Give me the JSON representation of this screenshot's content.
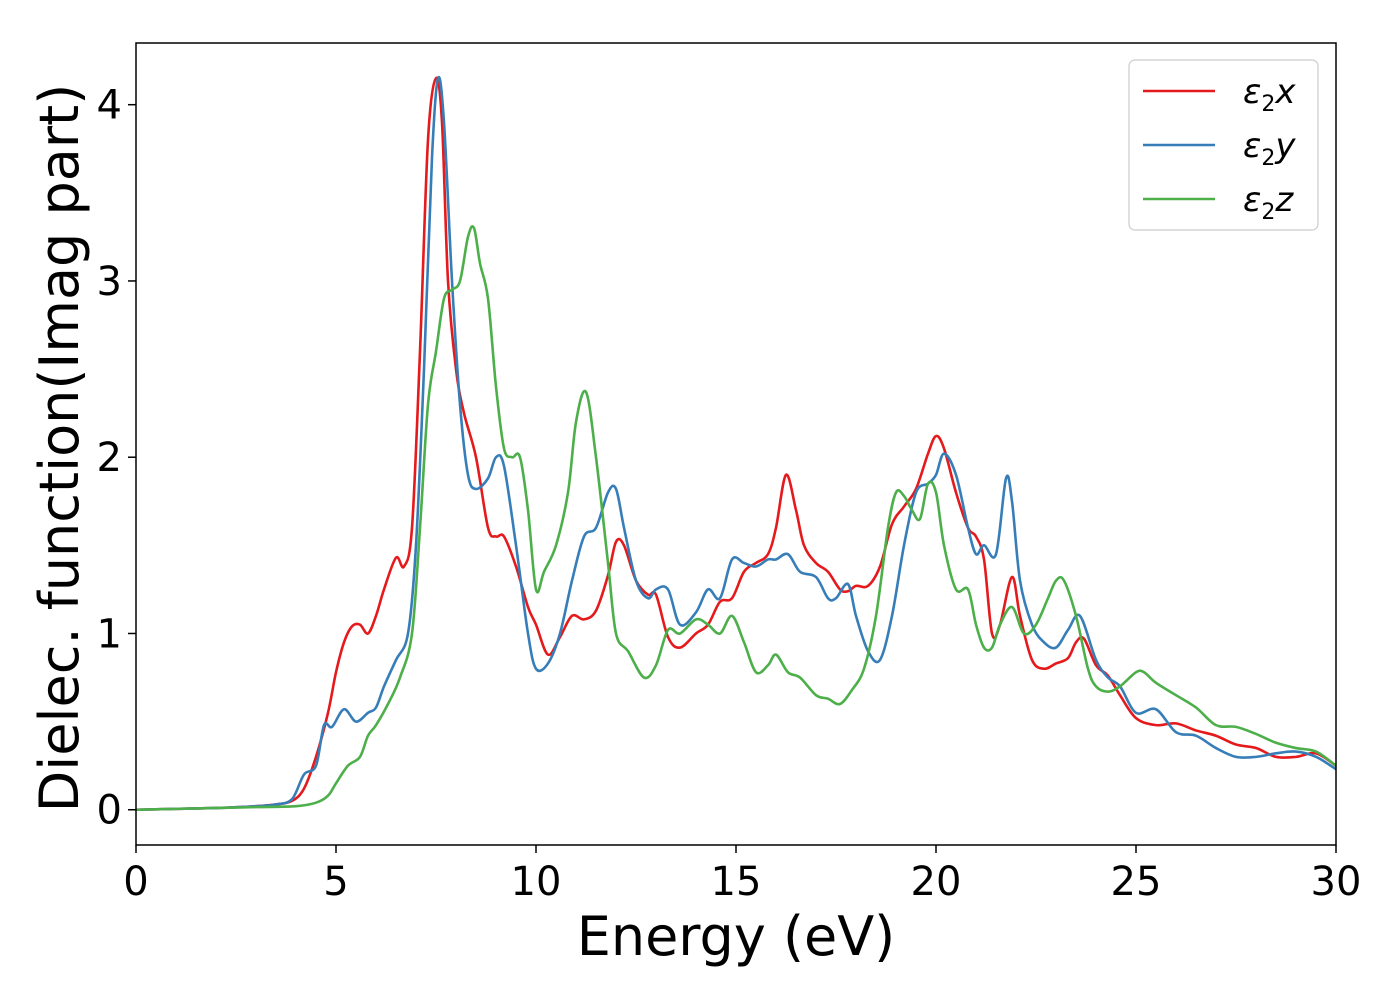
{
  "chart_data": {
    "type": "line",
    "title": "",
    "xlabel": "Energy (eV)",
    "ylabel": "Dielec. function(Imag part)",
    "xlim": [
      0,
      30
    ],
    "ylim": [
      -0.2,
      4.35
    ],
    "xticks": [
      0,
      5,
      10,
      15,
      20,
      25,
      30
    ],
    "yticks": [
      0,
      1,
      2,
      3,
      4
    ],
    "grid": false,
    "legend_position": "top-right",
    "series": [
      {
        "name": "ε₂x",
        "legend": {
          "base": "ε",
          "sub": "2",
          "suffix": "x"
        },
        "color": "#e41a1c",
        "x": [
          0,
          1,
          2,
          3,
          3.5,
          3.9,
          4.2,
          4.5,
          4.8,
          5.0,
          5.2,
          5.4,
          5.6,
          5.8,
          6.0,
          6.2,
          6.5,
          6.7,
          6.9,
          7.1,
          7.3,
          7.5,
          7.65,
          7.8,
          8.0,
          8.2,
          8.5,
          8.8,
          9.0,
          9.2,
          9.5,
          9.8,
          10.0,
          10.3,
          10.6,
          10.9,
          11.2,
          11.5,
          11.8,
          12.0,
          12.2,
          12.5,
          12.8,
          13.0,
          13.3,
          13.6,
          14.0,
          14.3,
          14.6,
          14.9,
          15.2,
          15.5,
          15.8,
          16.0,
          16.25,
          16.5,
          16.7,
          17.0,
          17.3,
          17.6,
          17.8,
          18.0,
          18.3,
          18.6,
          18.9,
          19.2,
          19.5,
          19.8,
          20.0,
          20.2,
          20.5,
          20.8,
          21.0,
          21.2,
          21.4,
          21.6,
          21.9,
          22.1,
          22.4,
          22.7,
          23.0,
          23.3,
          23.5,
          23.7,
          24.0,
          24.3,
          24.6,
          25.0,
          25.5,
          26.0,
          26.5,
          27.0,
          27.5,
          28.0,
          28.5,
          29.0,
          29.5,
          30.0
        ],
        "y": [
          0.0,
          0.005,
          0.01,
          0.02,
          0.03,
          0.05,
          0.12,
          0.3,
          0.55,
          0.78,
          0.95,
          1.04,
          1.05,
          1.0,
          1.1,
          1.25,
          1.43,
          1.38,
          1.6,
          2.6,
          3.8,
          4.15,
          3.9,
          3.0,
          2.5,
          2.25,
          2.0,
          1.6,
          1.55,
          1.55,
          1.38,
          1.15,
          1.05,
          0.88,
          0.98,
          1.1,
          1.08,
          1.13,
          1.33,
          1.52,
          1.5,
          1.3,
          1.22,
          1.22,
          0.98,
          0.92,
          1.0,
          1.05,
          1.18,
          1.2,
          1.35,
          1.4,
          1.45,
          1.6,
          1.9,
          1.7,
          1.5,
          1.4,
          1.35,
          1.25,
          1.24,
          1.27,
          1.27,
          1.38,
          1.62,
          1.72,
          1.82,
          2.02,
          2.12,
          2.05,
          1.8,
          1.6,
          1.55,
          1.42,
          1.0,
          1.05,
          1.32,
          1.1,
          0.85,
          0.8,
          0.83,
          0.86,
          0.95,
          0.97,
          0.82,
          0.76,
          0.65,
          0.52,
          0.48,
          0.49,
          0.45,
          0.42,
          0.37,
          0.35,
          0.3,
          0.3,
          0.32,
          0.25
        ]
      },
      {
        "name": "ε₂y",
        "legend": {
          "base": "ε",
          "sub": "2",
          "suffix": "y"
        },
        "color": "#377eb8",
        "x": [
          0,
          1,
          2,
          3,
          3.5,
          3.9,
          4.2,
          4.5,
          4.7,
          4.9,
          5.2,
          5.5,
          5.8,
          6.0,
          6.2,
          6.5,
          6.8,
          7.0,
          7.2,
          7.4,
          7.55,
          7.7,
          7.9,
          8.1,
          8.3,
          8.5,
          8.8,
          9.0,
          9.2,
          9.5,
          9.8,
          10.0,
          10.3,
          10.6,
          10.9,
          11.2,
          11.5,
          11.8,
          12.0,
          12.2,
          12.5,
          12.8,
          13.0,
          13.3,
          13.6,
          14.0,
          14.3,
          14.6,
          14.9,
          15.2,
          15.5,
          15.8,
          16.0,
          16.3,
          16.6,
          17.0,
          17.3,
          17.5,
          17.8,
          18.0,
          18.3,
          18.6,
          18.9,
          19.2,
          19.5,
          19.8,
          20.0,
          20.2,
          20.5,
          20.8,
          21.0,
          21.2,
          21.5,
          21.75,
          21.9,
          22.1,
          22.4,
          22.7,
          23.0,
          23.3,
          23.6,
          24.0,
          24.3,
          24.6,
          25.0,
          25.5,
          26.0,
          26.5,
          27.0,
          27.5,
          28.0,
          28.5,
          29.0,
          29.5,
          30.0
        ],
        "y": [
          0.0,
          0.005,
          0.01,
          0.02,
          0.03,
          0.06,
          0.2,
          0.25,
          0.48,
          0.47,
          0.57,
          0.5,
          0.55,
          0.58,
          0.7,
          0.85,
          1.0,
          1.5,
          2.5,
          3.7,
          4.15,
          3.9,
          3.0,
          2.3,
          1.9,
          1.82,
          1.88,
          2.0,
          1.95,
          1.5,
          1.0,
          0.8,
          0.83,
          1.0,
          1.3,
          1.55,
          1.6,
          1.8,
          1.82,
          1.6,
          1.3,
          1.2,
          1.25,
          1.25,
          1.05,
          1.12,
          1.25,
          1.2,
          1.42,
          1.4,
          1.38,
          1.42,
          1.42,
          1.45,
          1.35,
          1.32,
          1.2,
          1.2,
          1.28,
          1.1,
          0.9,
          0.85,
          1.1,
          1.5,
          1.8,
          1.85,
          1.9,
          2.02,
          1.9,
          1.6,
          1.45,
          1.5,
          1.45,
          1.88,
          1.75,
          1.3,
          1.05,
          0.95,
          0.92,
          1.02,
          1.1,
          0.85,
          0.75,
          0.7,
          0.55,
          0.57,
          0.44,
          0.42,
          0.35,
          0.3,
          0.3,
          0.32,
          0.33,
          0.3,
          0.23
        ]
      },
      {
        "name": "ε₂z",
        "legend": {
          "base": "ε",
          "sub": "2",
          "suffix": "z"
        },
        "color": "#4daf4a",
        "x": [
          0,
          1,
          2,
          3,
          4,
          4.5,
          4.8,
          5.0,
          5.3,
          5.6,
          5.8,
          6.0,
          6.3,
          6.6,
          6.9,
          7.1,
          7.3,
          7.5,
          7.7,
          7.9,
          8.1,
          8.3,
          8.45,
          8.6,
          8.8,
          9.0,
          9.2,
          9.4,
          9.6,
          9.8,
          10.0,
          10.2,
          10.5,
          10.8,
          11.0,
          11.25,
          11.5,
          11.8,
          12.0,
          12.3,
          12.7,
          13.0,
          13.3,
          13.6,
          14.0,
          14.3,
          14.6,
          14.9,
          15.2,
          15.5,
          15.8,
          16.0,
          16.3,
          16.6,
          17.0,
          17.3,
          17.6,
          17.9,
          18.2,
          18.5,
          18.8,
          19.0,
          19.2,
          19.4,
          19.6,
          19.8,
          20.0,
          20.2,
          20.5,
          20.8,
          21.0,
          21.2,
          21.4,
          21.6,
          21.9,
          22.2,
          22.5,
          22.8,
          23.0,
          23.2,
          23.5,
          23.8,
          24.0,
          24.3,
          24.6,
          25.0,
          25.2,
          25.5,
          26.0,
          26.5,
          27.0,
          27.5,
          28.0,
          28.5,
          29.0,
          29.5,
          30.0
        ],
        "y": [
          0.0,
          0.005,
          0.01,
          0.015,
          0.02,
          0.04,
          0.08,
          0.15,
          0.25,
          0.3,
          0.42,
          0.48,
          0.6,
          0.75,
          1.0,
          1.6,
          2.3,
          2.6,
          2.9,
          2.95,
          3.0,
          3.25,
          3.3,
          3.1,
          2.9,
          2.4,
          2.05,
          2.0,
          2.0,
          1.7,
          1.25,
          1.35,
          1.5,
          1.8,
          2.2,
          2.37,
          2.0,
          1.4,
          1.0,
          0.9,
          0.75,
          0.82,
          1.02,
          1.0,
          1.08,
          1.05,
          1.0,
          1.1,
          0.95,
          0.78,
          0.82,
          0.88,
          0.78,
          0.75,
          0.65,
          0.63,
          0.6,
          0.68,
          0.8,
          1.1,
          1.6,
          1.8,
          1.78,
          1.7,
          1.65,
          1.85,
          1.8,
          1.5,
          1.25,
          1.25,
          1.05,
          0.92,
          0.92,
          1.05,
          1.15,
          1.0,
          1.05,
          1.2,
          1.3,
          1.3,
          1.1,
          0.8,
          0.7,
          0.67,
          0.7,
          0.78,
          0.78,
          0.72,
          0.65,
          0.58,
          0.48,
          0.47,
          0.43,
          0.38,
          0.35,
          0.33,
          0.25
        ]
      }
    ]
  }
}
